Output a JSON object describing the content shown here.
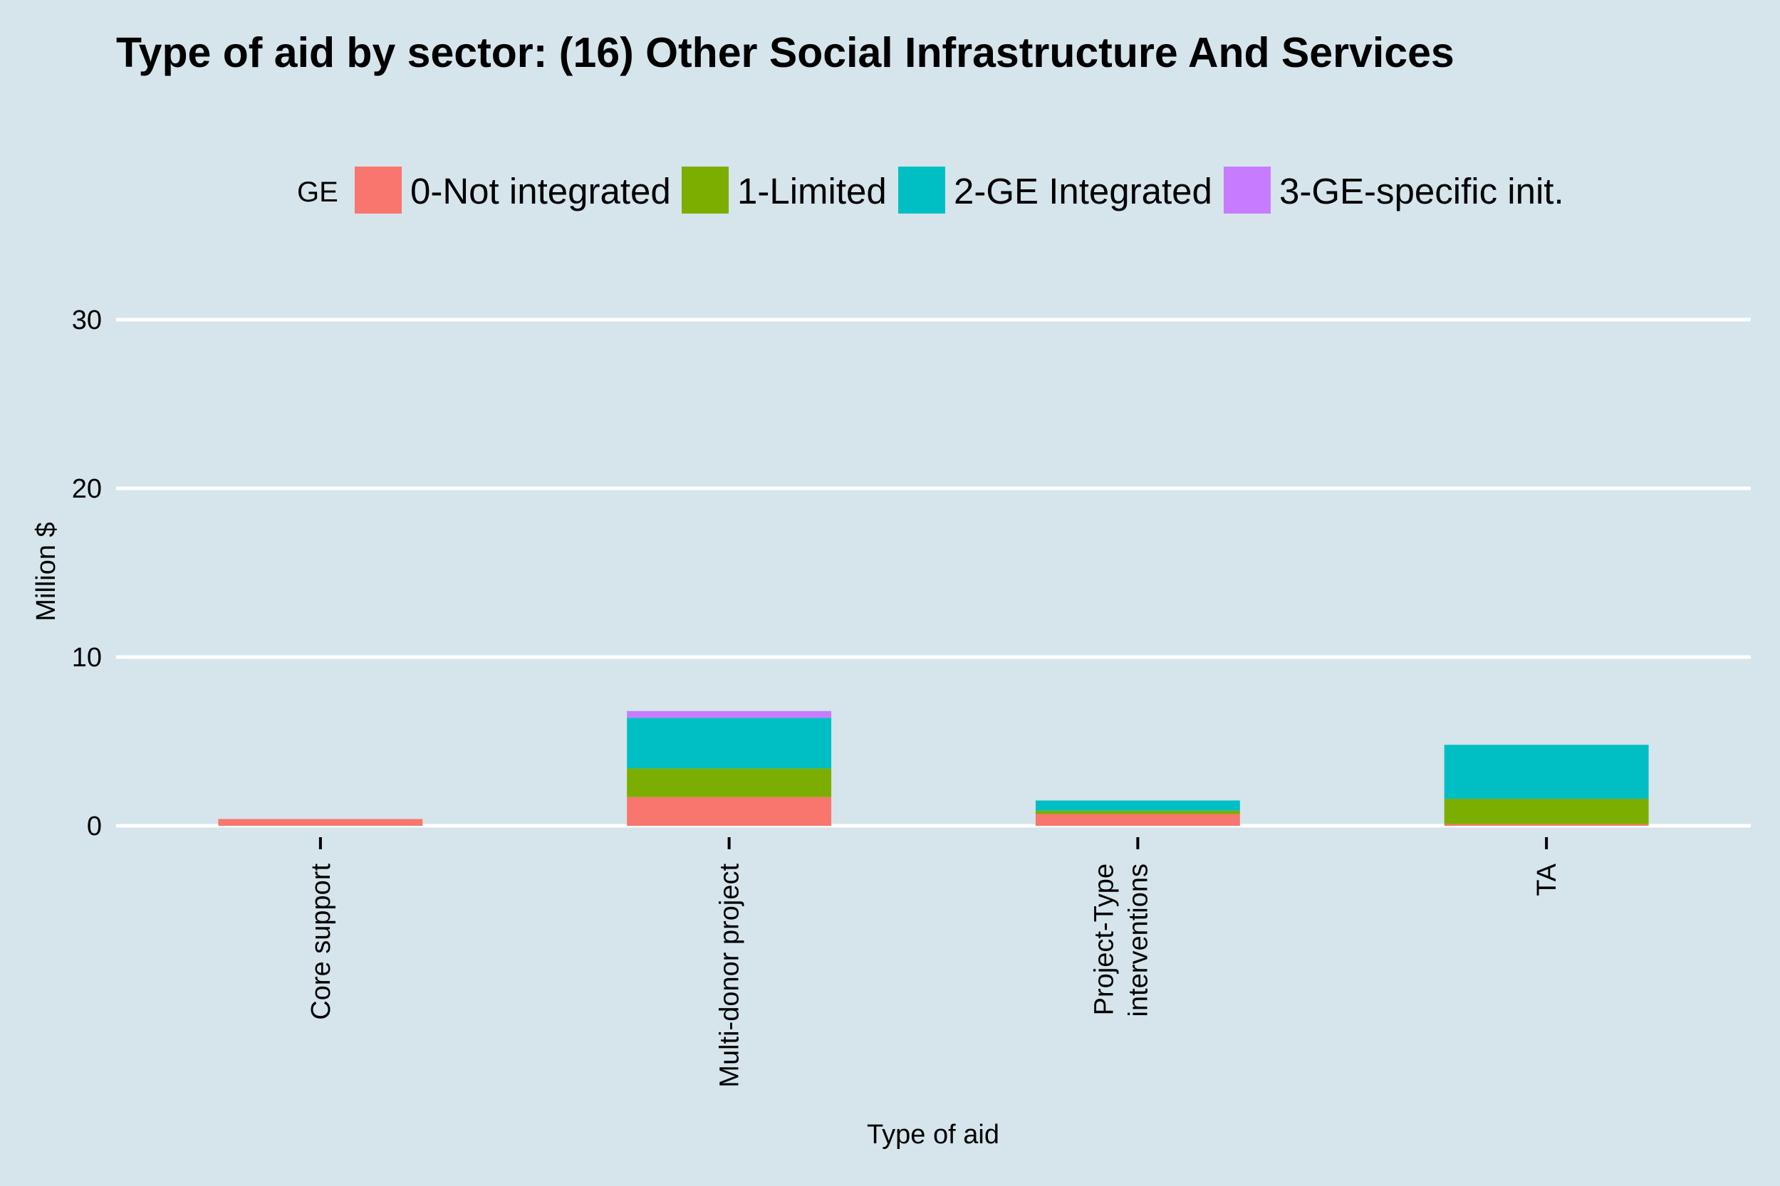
{
  "chart_data": {
    "type": "bar",
    "stacked": true,
    "title": "Type of aid by sector:  (16) Other Social Infrastructure And Services",
    "xlabel": "Type of aid",
    "ylabel": "Million $",
    "ylim": [
      0,
      33
    ],
    "yticks": [
      0,
      10,
      20,
      30
    ],
    "grid": true,
    "legend": {
      "title": "GE",
      "position": "top"
    },
    "categories": [
      [
        "Core support"
      ],
      [
        "Multi-donor project"
      ],
      [
        "Project-Type",
        "interventions"
      ],
      [
        "TA"
      ]
    ],
    "series": [
      {
        "name": "0-Not integrated",
        "color": "#f8766d",
        "values": [
          0.4,
          1.7,
          0.7,
          0.1
        ]
      },
      {
        "name": "1-Limited",
        "color": "#7cae00",
        "values": [
          0.0,
          1.7,
          0.2,
          1.5
        ]
      },
      {
        "name": "2-GE Integrated",
        "color": "#00bfc4",
        "values": [
          0.0,
          3.0,
          0.6,
          3.2
        ]
      },
      {
        "name": "3-GE-specific init.",
        "color": "#c77cff",
        "values": [
          0.0,
          0.4,
          0.0,
          0.0
        ]
      }
    ]
  },
  "colors": {
    "background": "#d6e4eb",
    "grid": "#ffffff"
  }
}
